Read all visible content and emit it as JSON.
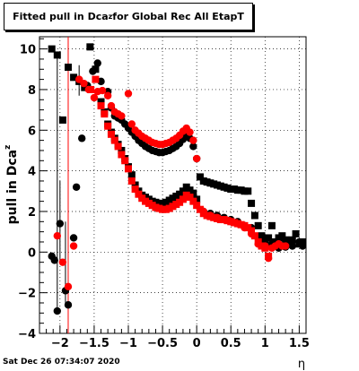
{
  "title": {
    "main": "Fitted pull in Dca",
    "sub": "z",
    "rest": " for Global Rec All EtapT"
  },
  "footer": "Sat Dec 26 07:34:07 2020",
  "chart_data": {
    "type": "scatter",
    "title": "Fitted pull in Dca_z for Global Rec All EtapT",
    "xlabel": "η",
    "ylabel": "pull in Dca_z",
    "xlim": [
      -2.3,
      1.6
    ],
    "ylim": [
      -4,
      10.6
    ],
    "xticks": [
      -2,
      -1.5,
      -1,
      -0.5,
      0,
      0.5,
      1,
      1.5
    ],
    "xtick_labels": [
      "−2",
      "−1.5",
      "−1",
      "−0.5",
      "0",
      "0.5",
      "1",
      "1.5"
    ],
    "yticks": [
      -4,
      -2,
      0,
      2,
      4,
      6,
      8,
      10
    ],
    "ytick_labels": [
      "−4",
      "−2",
      "0",
      "2",
      "4",
      "6",
      "8",
      "10"
    ],
    "grid": true,
    "series": [
      {
        "color": "#000000",
        "marker": "square",
        "points": [
          [
            -2.12,
            10.0
          ],
          [
            -2.04,
            9.7
          ],
          [
            -1.96,
            6.5
          ],
          [
            -1.88,
            9.1
          ],
          [
            -1.8,
            8.6
          ],
          [
            -1.72,
            8.4
          ],
          [
            -1.64,
            8.1
          ],
          [
            -1.56,
            10.1
          ],
          [
            -1.48,
            9.0
          ],
          [
            -1.4,
            7.4
          ],
          [
            -1.35,
            6.9
          ],
          [
            -1.3,
            6.3
          ],
          [
            -1.25,
            5.9
          ],
          [
            -1.2,
            5.6
          ],
          [
            -1.15,
            5.3
          ],
          [
            -1.1,
            5.0
          ],
          [
            -1.05,
            4.6
          ],
          [
            -1.0,
            4.2
          ],
          [
            -0.95,
            3.8
          ],
          [
            -0.9,
            3.3
          ],
          [
            -0.85,
            3.0
          ],
          [
            -0.8,
            2.8
          ],
          [
            -0.75,
            2.7
          ],
          [
            -0.7,
            2.6
          ],
          [
            -0.65,
            2.5
          ],
          [
            -0.6,
            2.45
          ],
          [
            -0.55,
            2.4
          ],
          [
            -0.5,
            2.4
          ],
          [
            -0.45,
            2.45
          ],
          [
            -0.4,
            2.55
          ],
          [
            -0.35,
            2.65
          ],
          [
            -0.3,
            2.75
          ],
          [
            -0.25,
            2.85
          ],
          [
            -0.2,
            3.0
          ],
          [
            -0.15,
            3.2
          ],
          [
            -0.1,
            3.05
          ],
          [
            -0.05,
            2.9
          ],
          [
            0.0,
            2.6
          ],
          [
            0.05,
            3.7
          ],
          [
            0.1,
            3.5
          ],
          [
            0.15,
            3.45
          ],
          [
            0.2,
            3.4
          ],
          [
            0.25,
            3.35
          ],
          [
            0.3,
            3.3
          ],
          [
            0.35,
            3.25
          ],
          [
            0.4,
            3.2
          ],
          [
            0.45,
            3.15
          ],
          [
            0.5,
            3.1
          ],
          [
            0.55,
            3.1
          ],
          [
            0.6,
            3.05
          ],
          [
            0.65,
            3.05
          ],
          [
            0.7,
            3.0
          ],
          [
            0.75,
            3.0
          ],
          [
            0.8,
            2.4
          ],
          [
            0.85,
            1.8
          ],
          [
            0.9,
            1.3
          ],
          [
            0.95,
            0.8
          ],
          [
            1.0,
            0.6
          ],
          [
            1.05,
            0.7
          ],
          [
            1.1,
            1.3
          ],
          [
            1.15,
            0.5
          ],
          [
            1.2,
            0.7
          ],
          [
            1.25,
            0.8
          ],
          [
            1.3,
            0.6
          ],
          [
            1.35,
            0.5
          ],
          [
            1.4,
            0.6
          ],
          [
            1.45,
            0.9
          ],
          [
            1.5,
            0.4
          ],
          [
            1.55,
            0.5
          ]
        ]
      },
      {
        "color": "#000000",
        "marker": "circle",
        "points": [
          [
            -2.12,
            -0.2
          ],
          [
            -2.08,
            -0.4
          ],
          [
            -2.04,
            -2.9
          ],
          [
            -2.0,
            1.4
          ],
          [
            -1.92,
            -1.9
          ],
          [
            -1.88,
            -2.6
          ],
          [
            -1.8,
            0.7
          ],
          [
            -1.76,
            3.2
          ],
          [
            -1.68,
            5.6
          ],
          [
            -1.6,
            8.2
          ],
          [
            -1.52,
            8.9
          ],
          [
            -1.45,
            9.3
          ],
          [
            -1.4,
            8.4
          ],
          [
            -1.3,
            7.9
          ],
          [
            -1.25,
            7.1
          ],
          [
            -1.2,
            6.7
          ],
          [
            -1.15,
            6.6
          ],
          [
            -1.1,
            6.5
          ],
          [
            -1.05,
            6.3
          ],
          [
            -1.0,
            6.1
          ],
          [
            -0.95,
            5.9
          ],
          [
            -0.9,
            5.7
          ],
          [
            -0.85,
            5.5
          ],
          [
            -0.8,
            5.35
          ],
          [
            -0.75,
            5.2
          ],
          [
            -0.7,
            5.1
          ],
          [
            -0.65,
            5.0
          ],
          [
            -0.6,
            4.95
          ],
          [
            -0.55,
            4.9
          ],
          [
            -0.5,
            4.9
          ],
          [
            -0.45,
            4.95
          ],
          [
            -0.4,
            5.0
          ],
          [
            -0.35,
            5.1
          ],
          [
            -0.3,
            5.2
          ],
          [
            -0.25,
            5.35
          ],
          [
            -0.2,
            5.55
          ],
          [
            -0.15,
            5.8
          ],
          [
            -0.1,
            5.6
          ],
          [
            -0.05,
            5.2
          ],
          [
            0.0,
            4.6
          ],
          [
            0.1,
            2.0
          ],
          [
            0.2,
            1.9
          ],
          [
            0.3,
            1.8
          ],
          [
            0.4,
            1.7
          ],
          [
            0.5,
            1.6
          ],
          [
            0.6,
            1.5
          ],
          [
            0.7,
            1.3
          ],
          [
            0.8,
            1.2
          ],
          [
            0.9,
            0.7
          ],
          [
            1.0,
            0.3
          ],
          [
            1.1,
            0.4
          ],
          [
            1.2,
            0.2
          ],
          [
            1.3,
            0.25
          ],
          [
            1.4,
            0.3
          ],
          [
            1.5,
            0.5
          ],
          [
            1.55,
            0.3
          ]
        ]
      },
      {
        "color": "#ff0000",
        "marker": "square",
        "points": [
          [
            -1.55,
            8.0
          ],
          [
            -1.48,
            8.5
          ],
          [
            -1.4,
            7.2
          ],
          [
            -1.35,
            6.8
          ],
          [
            -1.3,
            6.2
          ],
          [
            -1.25,
            5.8
          ],
          [
            -1.2,
            5.5
          ],
          [
            -1.15,
            5.2
          ],
          [
            -1.1,
            4.8
          ],
          [
            -1.05,
            4.5
          ],
          [
            -1.0,
            4.1
          ],
          [
            -0.95,
            3.5
          ],
          [
            -0.9,
            3.1
          ],
          [
            -0.85,
            2.85
          ],
          [
            -0.8,
            2.65
          ],
          [
            -0.75,
            2.5
          ],
          [
            -0.7,
            2.4
          ],
          [
            -0.65,
            2.3
          ],
          [
            -0.6,
            2.2
          ],
          [
            -0.55,
            2.15
          ],
          [
            -0.5,
            2.1
          ],
          [
            -0.45,
            2.1
          ],
          [
            -0.4,
            2.15
          ],
          [
            -0.35,
            2.25
          ],
          [
            -0.3,
            2.35
          ],
          [
            -0.25,
            2.45
          ],
          [
            -0.2,
            2.6
          ],
          [
            -0.15,
            2.8
          ],
          [
            -0.1,
            2.7
          ],
          [
            -0.05,
            2.5
          ],
          [
            0.0,
            2.3
          ],
          [
            0.05,
            2.1
          ],
          [
            0.1,
            1.9
          ],
          [
            0.15,
            1.8
          ],
          [
            0.2,
            1.75
          ],
          [
            0.25,
            1.7
          ],
          [
            0.3,
            1.65
          ],
          [
            0.35,
            1.6
          ],
          [
            0.4,
            1.6
          ],
          [
            0.45,
            1.55
          ],
          [
            0.5,
            1.5
          ],
          [
            0.55,
            1.45
          ],
          [
            0.6,
            1.4
          ],
          [
            0.65,
            1.35
          ],
          [
            0.7,
            1.3
          ],
          [
            0.75,
            1.2
          ],
          [
            0.8,
            1.05
          ],
          [
            0.85,
            0.8
          ],
          [
            0.9,
            0.5
          ],
          [
            0.95,
            0.3
          ],
          [
            1.0,
            0.2
          ],
          [
            1.05,
            -0.2
          ]
        ]
      },
      {
        "color": "#ff0000",
        "marker": "circle",
        "points": [
          [
            -2.04,
            0.8
          ],
          [
            -1.96,
            -0.5
          ],
          [
            -1.88,
            -1.7
          ],
          [
            -1.8,
            0.3
          ],
          [
            -1.72,
            8.5
          ],
          [
            -1.65,
            8.3
          ],
          [
            -1.58,
            8.0
          ],
          [
            -1.5,
            7.6
          ],
          [
            -1.45,
            7.9
          ],
          [
            -1.38,
            7.95
          ],
          [
            -1.3,
            7.7
          ],
          [
            -1.25,
            7.2
          ],
          [
            -1.2,
            6.9
          ],
          [
            -1.15,
            6.8
          ],
          [
            -1.1,
            6.7
          ],
          [
            -1.0,
            7.8
          ],
          [
            -0.95,
            6.3
          ],
          [
            -0.9,
            6.0
          ],
          [
            -0.85,
            5.85
          ],
          [
            -0.8,
            5.7
          ],
          [
            -0.75,
            5.6
          ],
          [
            -0.7,
            5.5
          ],
          [
            -0.65,
            5.4
          ],
          [
            -0.6,
            5.35
          ],
          [
            -0.55,
            5.3
          ],
          [
            -0.5,
            5.3
          ],
          [
            -0.45,
            5.35
          ],
          [
            -0.4,
            5.4
          ],
          [
            -0.35,
            5.5
          ],
          [
            -0.3,
            5.6
          ],
          [
            -0.25,
            5.75
          ],
          [
            -0.2,
            5.95
          ],
          [
            -0.15,
            6.1
          ],
          [
            -0.1,
            5.9
          ],
          [
            -0.05,
            5.5
          ],
          [
            0.0,
            4.6
          ],
          [
            0.1,
            2.0
          ],
          [
            0.2,
            1.8
          ],
          [
            0.3,
            1.7
          ],
          [
            0.4,
            1.6
          ],
          [
            0.5,
            1.5
          ],
          [
            0.6,
            1.4
          ],
          [
            0.7,
            1.2
          ],
          [
            0.8,
            0.9
          ],
          [
            0.9,
            0.4
          ],
          [
            1.0,
            0.3
          ],
          [
            1.05,
            -0.3
          ],
          [
            1.1,
            0.2
          ],
          [
            1.15,
            0.3
          ],
          [
            1.2,
            0.4
          ],
          [
            1.25,
            0.3
          ],
          [
            1.3,
            0.3
          ]
        ]
      }
    ]
  }
}
